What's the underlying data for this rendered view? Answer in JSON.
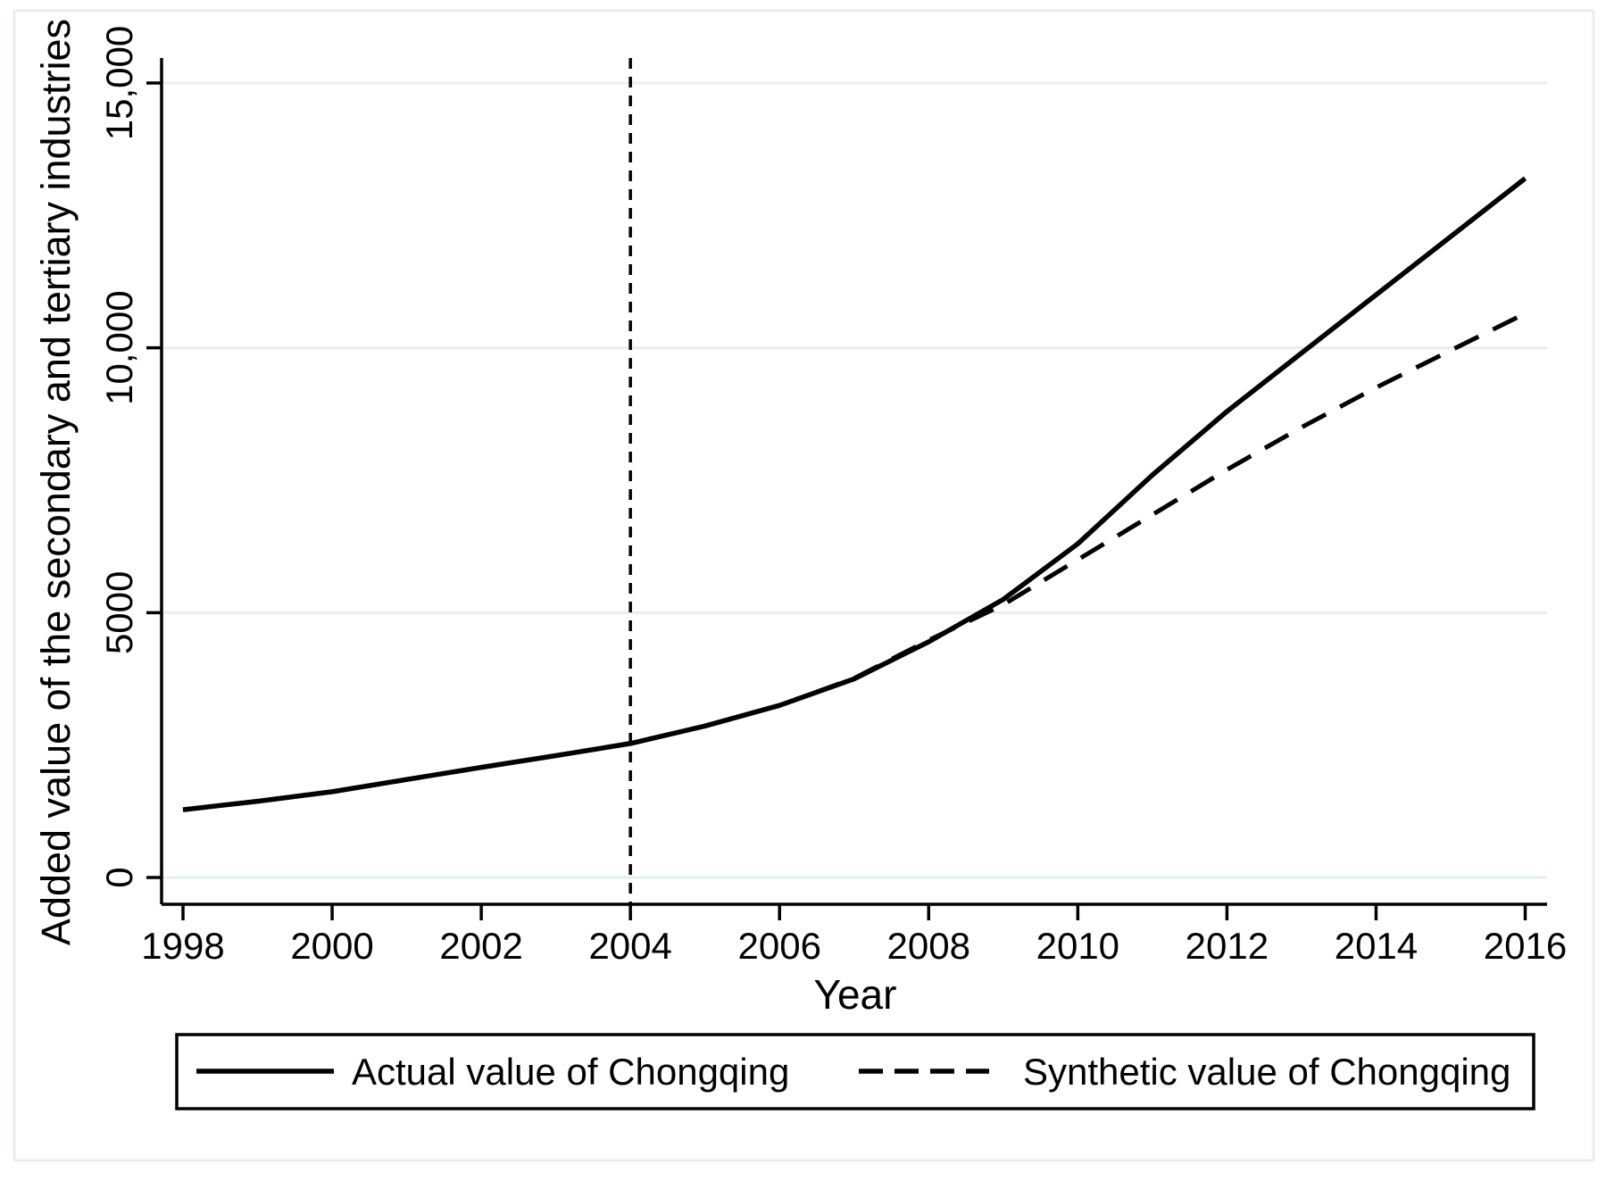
{
  "colors": {
    "line": "#000000",
    "grid": "#e4f0f0",
    "frame": "#e3edee",
    "background": "#ffffff"
  },
  "chart_data": {
    "type": "line",
    "title": "",
    "xlabel": "Year",
    "ylabel": "Added value of the secondary and tertiary industries",
    "x": [
      1998,
      1999,
      2000,
      2001,
      2002,
      2003,
      2004,
      2005,
      2006,
      2007,
      2008,
      2009,
      2010,
      2011,
      2012,
      2013,
      2014,
      2015,
      2016
    ],
    "series": [
      {
        "name": "Actual value of Chongqing",
        "line_style": "solid",
        "values": [
          1280,
          1440,
          1620,
          1850,
          2080,
          2300,
          2530,
          2860,
          3250,
          3750,
          4450,
          5250,
          6300,
          7600,
          8800,
          9900,
          11000,
          12100,
          13200
        ]
      },
      {
        "name": "Synthetic value of Chongqing",
        "line_style": "dashed",
        "values": [
          1280,
          1438,
          1618,
          1848,
          2078,
          2302,
          2535,
          2862,
          3248,
          3762,
          4480,
          5150,
          6000,
          6850,
          7700,
          8500,
          9250,
          9950,
          10650
        ]
      }
    ],
    "xticks": [
      1998,
      2000,
      2002,
      2004,
      2006,
      2008,
      2010,
      2012,
      2014,
      2016
    ],
    "yticks": [
      {
        "value": 0,
        "label": "0"
      },
      {
        "value": 5000,
        "label": "5000"
      },
      {
        "value": 10000,
        "label": "10,000"
      },
      {
        "value": 15000,
        "label": "15,000"
      }
    ],
    "xlim": [
      1998,
      2016.3
    ],
    "ylim": [
      0,
      15470
    ],
    "grid": "horizontal",
    "legend_position": "bottom",
    "annotations": [
      {
        "type": "vline",
        "x": 2004,
        "style": "dashed"
      }
    ]
  }
}
